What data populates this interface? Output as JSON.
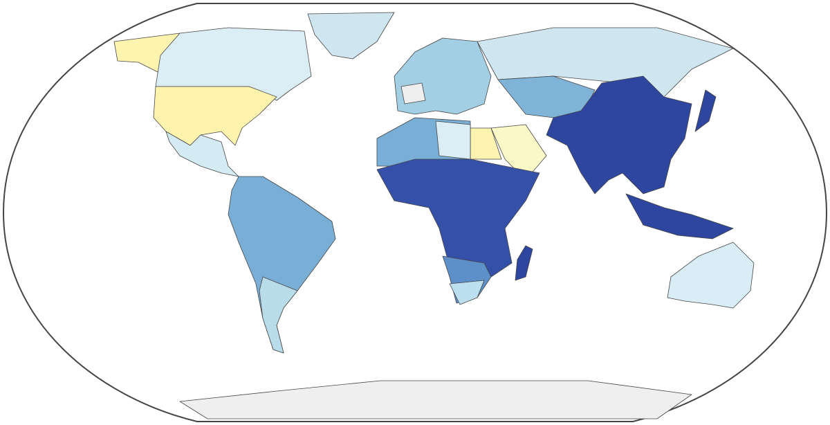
{
  "map": {
    "fills": [
      "#fff3b0",
      "#dbeef5",
      "#cfe6f0",
      "#fff3ad",
      "#d4ebf3",
      "#79aed6",
      "#b8dcea",
      "#a3cfe5",
      "#cfe6f0",
      "#7fb3d8",
      "#2f46a0",
      "#2f46a0",
      "#2f46a0",
      "#fbf8c8",
      "#fdf3b0",
      "#79aed6",
      "#dbeef5",
      "#3550a8",
      "#5d8fc9",
      "#bcdff0",
      "#2f46a0",
      "#d8edf5",
      "#efefef",
      "#eeeeee"
    ]
  }
}
